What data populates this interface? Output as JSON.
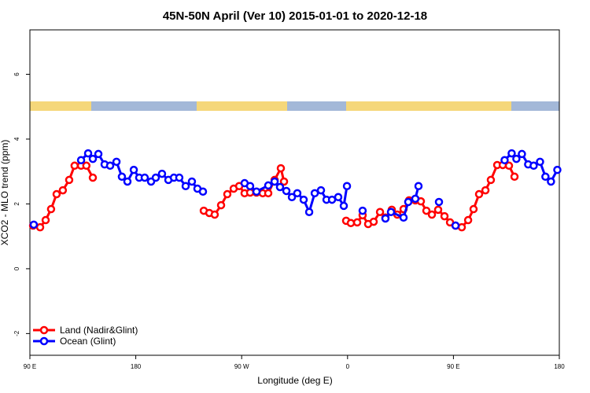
{
  "chart_data": {
    "type": "line",
    "title": "45N-50N April (Ver 10)   2015-01-01 to 2020-12-18",
    "xlabel": "Longitude (deg E)",
    "ylabel": "XCO2 - MLO trend (ppm)",
    "xlim": [
      90,
      540
    ],
    "ylim": [
      -2.67,
      7.37
    ],
    "xticks": [
      {
        "value": 90,
        "label": "90 E"
      },
      {
        "value": 180,
        "label": "180"
      },
      {
        "value": 270,
        "label": "90 W"
      },
      {
        "value": 360,
        "label": "0"
      },
      {
        "value": 450,
        "label": "90 E"
      },
      {
        "value": 540,
        "label": "180"
      }
    ],
    "yticks": [
      -2,
      0,
      2,
      4,
      6
    ],
    "legend": "bottomleft",
    "series": [
      {
        "name": "Land (Nadir&Glint)",
        "color": "#ff0000",
        "x": [
          92.7,
          98.7,
          103.4,
          108,
          112.7,
          118,
          123.4,
          128,
          133.5,
          138,
          143.5,
          190,
          237.8,
          242.5,
          247.1,
          252.5,
          257.8,
          263.2,
          267.9,
          272.5,
          277.2,
          282.6,
          287.9,
          292.6,
          298,
          303.3,
          306,
          330,
          358.8,
          362.8,
          368.2,
          372.8,
          377.5,
          382.2,
          387.6,
          392.2,
          397.6,
          402.3,
          407.6,
          412.3,
          417.6,
          422.3,
          427,
          431.7,
          437,
          442.4,
          447.1,
          451.8,
          457.1,
          462.5,
          467.1,
          471.8,
          477.2,
          481.8,
          487.2,
          491.9,
          497.2,
          501.9
        ],
        "values": [
          1.33,
          1.28,
          1.5,
          1.84,
          2.3,
          2.42,
          2.74,
          3.18,
          3.18,
          3.18,
          2.81,
          null,
          1.79,
          1.72,
          1.67,
          1.96,
          2.3,
          2.47,
          2.55,
          2.33,
          2.35,
          2.35,
          2.33,
          2.33,
          2.74,
          3.1,
          2.69,
          null,
          1.48,
          1.41,
          1.43,
          1.65,
          1.38,
          1.45,
          1.75,
          1.58,
          1.82,
          1.67,
          1.84,
          2.11,
          2.11,
          2.08,
          1.79,
          1.67,
          1.82,
          1.62,
          1.43,
          1.33,
          1.28,
          1.5,
          1.84,
          2.3,
          2.42,
          2.74,
          3.2,
          3.2,
          3.18,
          2.84
        ]
      },
      {
        "name": "Ocean (Glint)",
        "color": "#0000ff",
        "x": [
          93.3,
          110,
          133.5,
          139.5,
          143.5,
          148.2,
          153.5,
          158.2,
          163.6,
          168.2,
          172.9,
          178.3,
          182.9,
          187.6,
          193,
          197,
          202.3,
          207.7,
          212.4,
          217,
          222.4,
          227.7,
          232.4,
          237.1,
          250,
          272.5,
          277.2,
          282.6,
          292.6,
          298,
          302.6,
          308,
          312.7,
          317.3,
          322.7,
          327.4,
          332.1,
          337.4,
          342.1,
          346.8,
          352.1,
          356.8,
          359.5,
          365,
          372.8,
          380,
          392.2,
          396.9,
          407.6,
          411.6,
          417.6,
          420.3,
          430,
          437.7,
          445,
          451.8,
          470,
          493.5,
          499.5,
          503.5,
          508.2,
          513.5,
          518.2,
          523.6,
          528.2,
          532.9,
          538.3
        ],
        "values": [
          1.36,
          null,
          3.35,
          3.56,
          3.39,
          3.54,
          3.22,
          3.18,
          3.3,
          2.84,
          2.69,
          3.05,
          2.81,
          2.81,
          2.69,
          2.81,
          2.93,
          2.74,
          2.81,
          2.81,
          2.55,
          2.69,
          2.47,
          2.38,
          null,
          2.64,
          2.55,
          2.38,
          2.57,
          2.69,
          2.52,
          2.4,
          2.21,
          2.33,
          2.13,
          1.75,
          2.33,
          2.42,
          2.13,
          2.13,
          2.21,
          1.94,
          2.55,
          null,
          1.79,
          null,
          1.55,
          1.75,
          1.58,
          2.06,
          2.16,
          2.55,
          null,
          2.06,
          null,
          1.33,
          null,
          3.35,
          3.56,
          3.39,
          3.54,
          3.22,
          3.18,
          3.3,
          2.84,
          2.69,
          3.05
        ]
      }
    ]
  }
}
